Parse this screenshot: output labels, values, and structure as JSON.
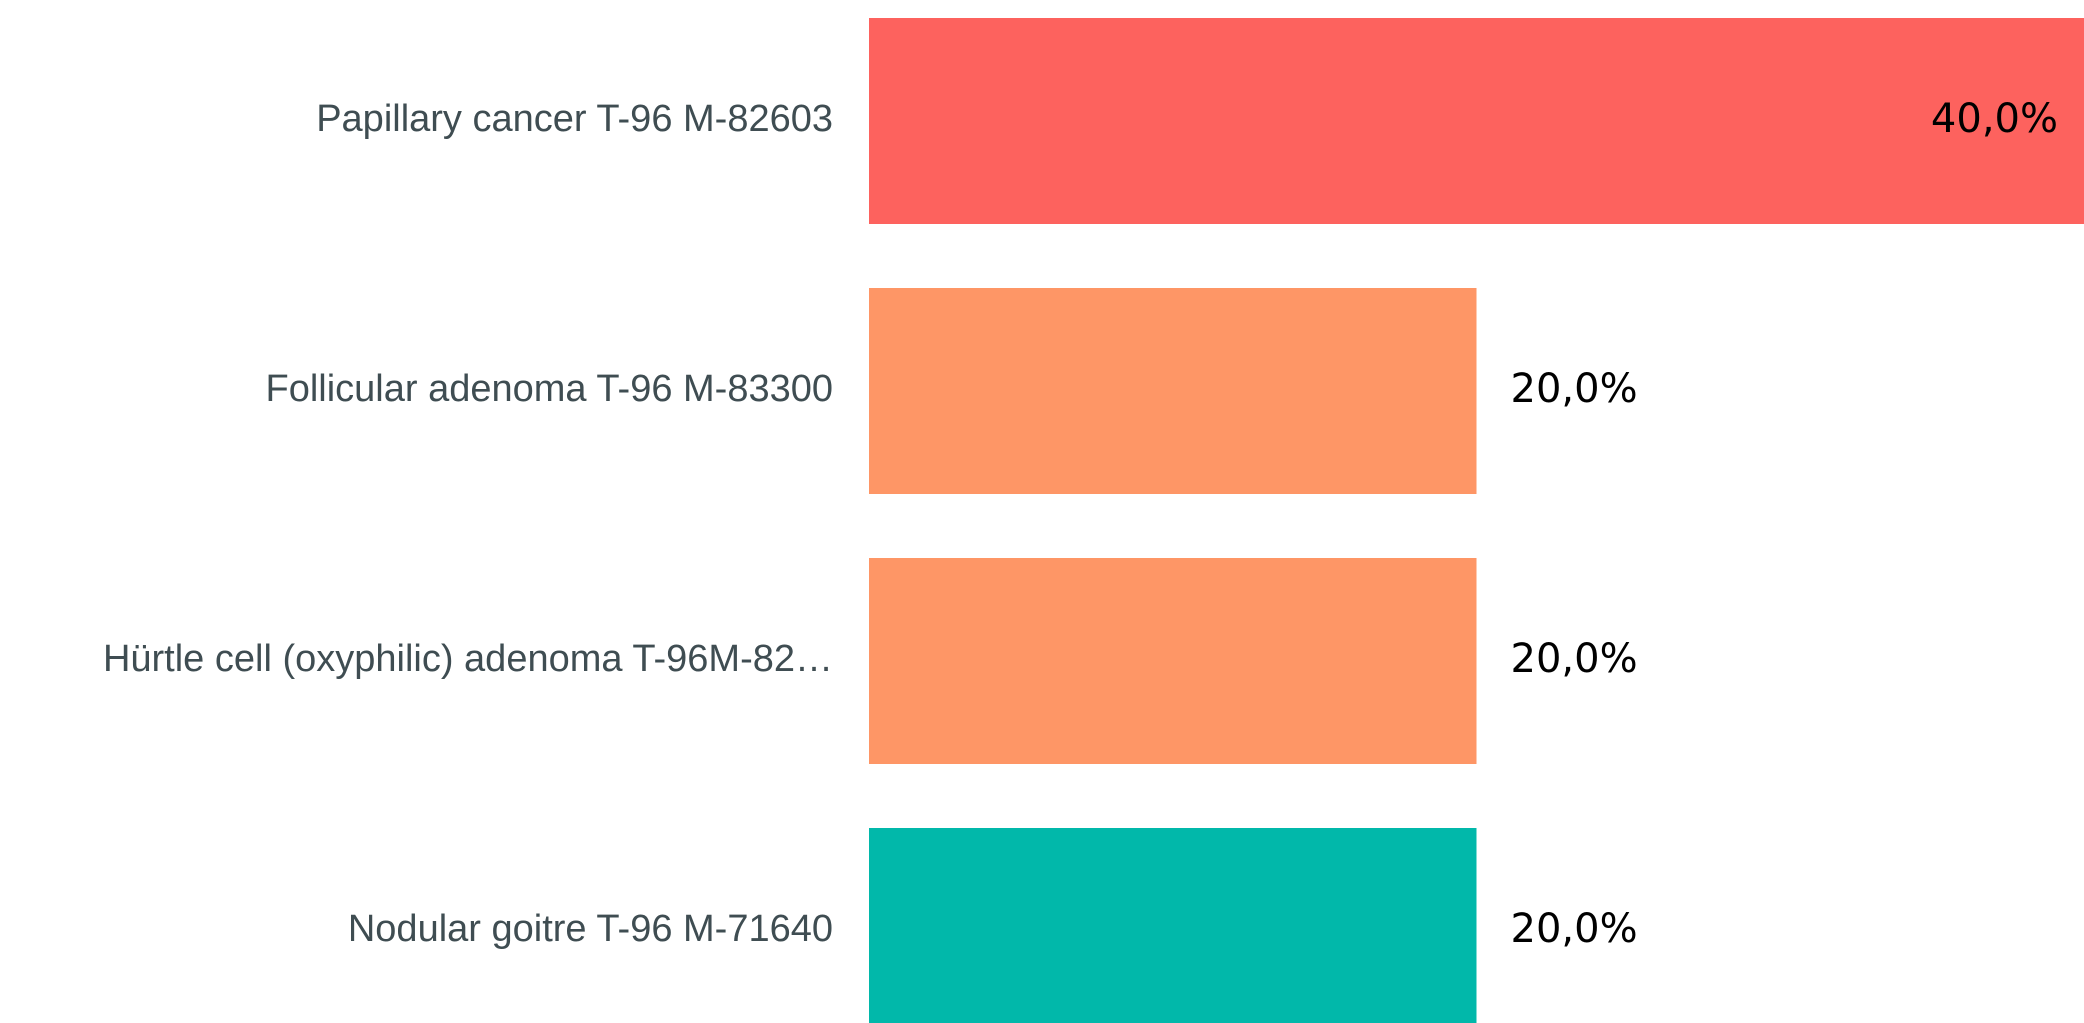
{
  "chart_data": {
    "type": "bar",
    "orientation": "horizontal",
    "categories": [
      "Papillary cancer T-96 M-82603",
      "Follicular adenoma T-96 M-83300",
      "Hürtle cell (oxyphilic) adenoma T-96M-82…",
      "Nodular goitre T-96 M-71640"
    ],
    "values": [
      40,
      20,
      20,
      20
    ],
    "value_labels": [
      "40,0%",
      "20,0%",
      "20,0%",
      "20,0%"
    ],
    "colors": [
      "#fd625e",
      "#fe9666",
      "#fe9666",
      "#01b8aa"
    ],
    "xlim": [
      0,
      40
    ]
  }
}
